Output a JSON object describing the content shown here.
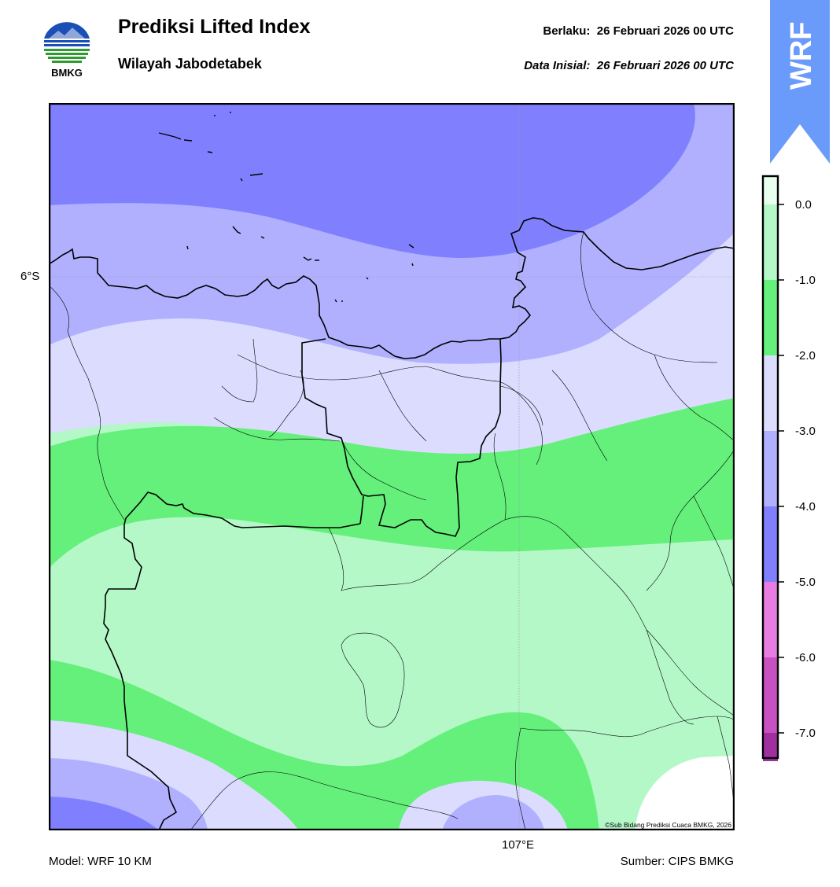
{
  "header": {
    "title": "Prediksi Lifted Index",
    "subtitle": "Wilayah Jabodetabek",
    "valid_label": "Berlaku:",
    "valid_value": "26 Februari 2026 00 UTC",
    "init_label": "Data Inisial:",
    "init_value": "26 Februari 2026 00 UTC"
  },
  "logo": {
    "text": "BMKG",
    "icon": "bmkg-logo-icon"
  },
  "badge": {
    "text": "WRF",
    "color": "#6b9bfa"
  },
  "map": {
    "lat_label": "6°S",
    "lon_label": "107°E",
    "copyright": "©Sub Bidang Prediksi Cuaca BMKG, 2026",
    "colors": {
      "lev_n5_n4": "#8080ff",
      "lev_n4_n3": "#b0b0ff",
      "lev_n3_n2": "#dcdcff",
      "lev_n2_n1": "#64f07a",
      "lev_n1_0": "#b4f8c8",
      "lev_0_up": "#ffffff"
    }
  },
  "colorbar": {
    "ticks": [
      "0.0",
      "-1.0",
      "-2.0",
      "-3.0",
      "-4.0",
      "-5.0",
      "-6.0",
      "-7.0"
    ],
    "colors": [
      "#e8ffee",
      "#b4f8c8",
      "#64f07a",
      "#dcdcff",
      "#b0b0ff",
      "#8080ff",
      "#e87ce0",
      "#c850c0",
      "#a030a0",
      "#7a1a7a"
    ]
  },
  "footer": {
    "model": "Model: WRF 10 KM",
    "source": "Sumber: CIPS BMKG"
  }
}
